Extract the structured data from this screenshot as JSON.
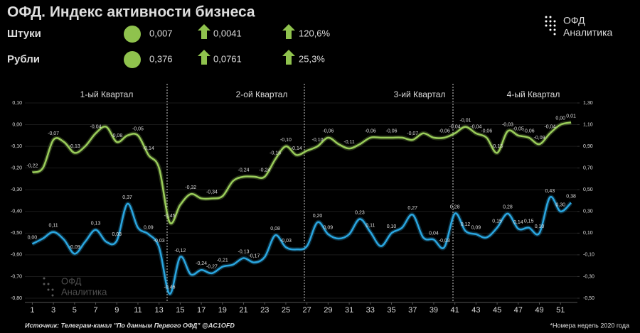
{
  "header": {
    "title": "ОФД. Индекс активности бизнеса",
    "rows": [
      [
        "0,007",
        "0,0041",
        "120,6%"
      ],
      [
        "0,376",
        "0,0761",
        "25,3%"
      ]
    ],
    "logo": [
      "ОФД",
      "Аналитика"
    ],
    "source": "Источник: Телеграм-канал \"По данным Первого ОФД\" @AC1OFD",
    "footnote": "*Номера недель 2020 года"
  },
  "chart_data": {
    "type": "line",
    "quarters": [
      "1-ый Квартал",
      "2-ой Квартал",
      "3-ий Квартал",
      "4-ый Квартал"
    ],
    "x": [
      1,
      2,
      3,
      4,
      5,
      6,
      7,
      8,
      9,
      10,
      11,
      12,
      13,
      14,
      15,
      16,
      17,
      18,
      19,
      20,
      21,
      22,
      23,
      24,
      25,
      26,
      27,
      28,
      29,
      30,
      31,
      32,
      33,
      34,
      35,
      36,
      37,
      38,
      39,
      40,
      41,
      42,
      43,
      44,
      45,
      46,
      47,
      48,
      49,
      50,
      51,
      52
    ],
    "xlim": [
      0.3,
      52.6
    ],
    "xticks": [
      1,
      3,
      5,
      7,
      9,
      11,
      13,
      15,
      17,
      19,
      21,
      23,
      25,
      27,
      29,
      31,
      33,
      35,
      37,
      39,
      41,
      43,
      45,
      47,
      49,
      51
    ],
    "ylim": [
      -0.8,
      0.1
    ],
    "yticks": [
      {
        "value": 0.1,
        "label": "0,10"
      },
      {
        "value": 0,
        "label": "0,00"
      },
      {
        "value": -0.1,
        "label": "-0,10"
      },
      {
        "value": -0.2,
        "label": "-0,20"
      },
      {
        "value": -0.3,
        "label": "-0,30"
      },
      {
        "value": -0.4,
        "label": "-0,40"
      },
      {
        "value": -0.5,
        "label": "-0,50"
      },
      {
        "value": -0.6,
        "label": "-0,60"
      },
      {
        "value": -0.7,
        "label": "-0,70"
      },
      {
        "value": -0.8,
        "label": "-0,80"
      }
    ],
    "y2lim": [
      -0.5,
      1.3
    ],
    "y2ticks": [
      {
        "value": 1.3,
        "label": "1,30"
      },
      {
        "value": 1.1,
        "label": "1,10"
      },
      {
        "value": 0.9,
        "label": "0,90"
      },
      {
        "value": 0.7,
        "label": "0,70"
      },
      {
        "value": 0.5,
        "label": "0,50"
      },
      {
        "value": 0.3,
        "label": "0,30"
      },
      {
        "value": 0.1,
        "label": "0,10"
      },
      {
        "value": -0.1,
        "label": "-0,10"
      },
      {
        "value": -0.3,
        "label": "-0,30"
      },
      {
        "value": -0.5,
        "label": "-0,50"
      }
    ],
    "series": [
      {
        "name": "Штуки",
        "color": "#9acd5a",
        "axis": "y",
        "values": [
          -0.22,
          -0.2,
          -0.07,
          -0.08,
          -0.13,
          -0.1,
          -0.04,
          -0.01,
          -0.08,
          -0.05,
          -0.05,
          -0.14,
          -0.2,
          -0.45,
          -0.37,
          -0.32,
          -0.34,
          -0.34,
          -0.33,
          -0.26,
          -0.24,
          -0.24,
          -0.24,
          -0.16,
          -0.1,
          -0.14,
          -0.12,
          -0.1,
          -0.06,
          -0.09,
          -0.11,
          -0.09,
          -0.06,
          -0.06,
          -0.06,
          -0.06,
          -0.07,
          -0.04,
          -0.06,
          -0.06,
          -0.04,
          -0.01,
          -0.04,
          -0.06,
          -0.13,
          -0.03,
          -0.05,
          -0.06,
          -0.09,
          -0.04,
          0,
          0.01
        ],
        "value_labels": [
          "-0,22",
          null,
          "-0,07",
          null,
          "-0,13",
          null,
          "-0,04",
          null,
          "-0,08",
          null,
          "-0,05",
          "-0,14",
          null,
          "-0,45",
          null,
          "-0,32",
          null,
          "-0,34",
          null,
          null,
          "-0,24",
          null,
          "-0,24",
          "-0,16",
          "-0,10",
          "-0,14",
          null,
          "-0,10",
          "-0,06",
          null,
          "-0,11",
          null,
          "-0,06",
          null,
          "-0,06",
          null,
          "-0,07",
          null,
          null,
          "-0,06",
          "-0,04",
          "-0,01",
          "-0,04",
          "-0,06",
          "-0,13",
          "-0,03",
          "-0,05",
          "-0,06",
          "-0,09",
          "-0,04",
          "0,00",
          "0,01"
        ]
      },
      {
        "name": "Рубли",
        "color": "#2aa6e0",
        "axis": "y2",
        "values": [
          0,
          0.05,
          0.11,
          0.04,
          -0.09,
          0.02,
          0.13,
          0.02,
          0.03,
          0.37,
          0.15,
          0.09,
          -0.03,
          -0.46,
          -0.12,
          -0.28,
          -0.24,
          -0.27,
          -0.21,
          -0.19,
          -0.13,
          -0.17,
          -0.12,
          0.08,
          -0.03,
          -0.05,
          -0.02,
          0.2,
          0.09,
          0.05,
          0.09,
          0.23,
          0.11,
          -0.02,
          0.1,
          0.15,
          0.27,
          0.06,
          0.04,
          -0.03,
          0.28,
          0.12,
          0.09,
          0.06,
          0.15,
          0.28,
          0.14,
          0.15,
          0.1,
          0.43,
          0.3,
          0.38
        ],
        "value_labels": [
          "0,00",
          null,
          "0,11",
          null,
          "-0,09",
          null,
          "0,13",
          null,
          "0,03",
          "0,37",
          null,
          "0,09",
          "-0,03",
          "-0,46",
          "-0,12",
          null,
          "-0,24",
          "-0,27",
          "-0,21",
          null,
          "-0,13",
          "-0,17",
          null,
          "0,08",
          "-0,03",
          null,
          null,
          "0,20",
          "0,09",
          null,
          null,
          "0,23",
          "0,11",
          null,
          "0,10",
          null,
          "0,27",
          null,
          "0,04",
          "-0,03",
          "0,28",
          "0,12",
          "0,09",
          null,
          "0,15",
          "0,28",
          "0,14",
          "0,15",
          "0,10",
          "0,43",
          "0,30",
          "0,38"
        ]
      }
    ]
  }
}
